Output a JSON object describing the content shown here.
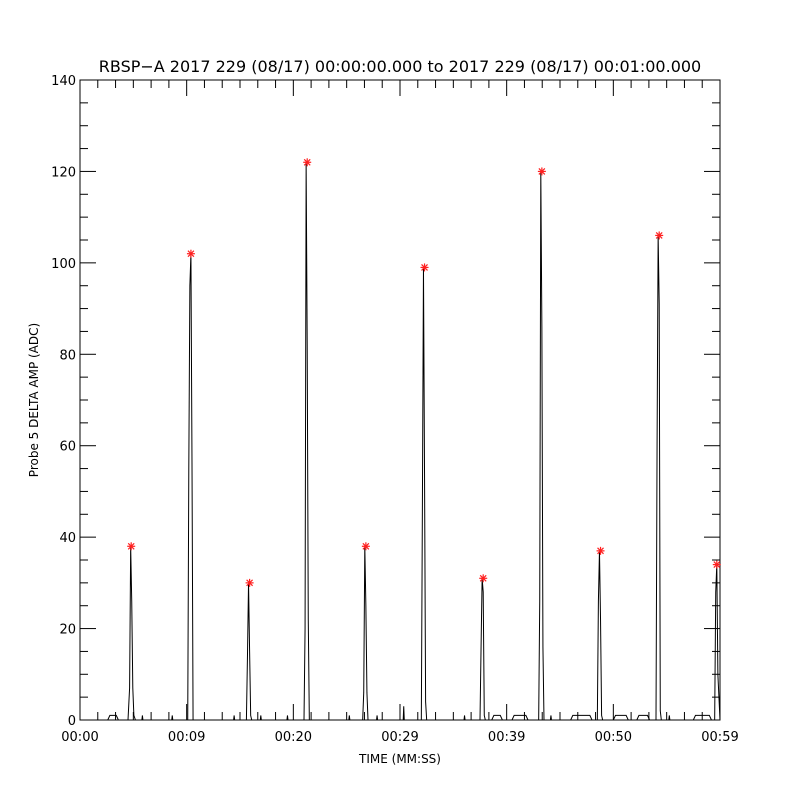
{
  "chart_data": {
    "type": "line",
    "title": "RBSP−A 2017 229 (08/17) 00:00:00.000 to 2017 229 (08/17) 00:01:00.000",
    "xlabel": "TIME (MM:SS)",
    "ylabel": "Probe 5 DELTA AMP (ADC)",
    "xlim": [
      0,
      60
    ],
    "ylim": [
      0,
      140
    ],
    "x_ticks": [
      {
        "value": 0,
        "label": "00:00"
      },
      {
        "value": 10,
        "label": "00:09"
      },
      {
        "value": 20,
        "label": "00:20"
      },
      {
        "value": 30,
        "label": "00:29"
      },
      {
        "value": 40,
        "label": "00:39"
      },
      {
        "value": 50,
        "label": "00:50"
      },
      {
        "value": 60,
        "label": "00:59"
      }
    ],
    "y_ticks": [
      0,
      20,
      40,
      60,
      80,
      100,
      120,
      140
    ],
    "series": [
      {
        "style": "black-line",
        "x": [
          0,
          2.6,
          2.8,
          3.4,
          3.6,
          4.5,
          4.65,
          4.75,
          4.85,
          4.95,
          5.05,
          5.2,
          5.8,
          5.85,
          5.9,
          8.6,
          8.65,
          8.7,
          10.1,
          10.2,
          10.3,
          10.4,
          10.5,
          10.6,
          14.4,
          14.45,
          14.5,
          15.6,
          15.7,
          15.8,
          15.9,
          16.0,
          16.1,
          16.9,
          16.95,
          17.0,
          19.4,
          19.45,
          19.5,
          21.0,
          21.1,
          21.2,
          21.3,
          21.4,
          21.5,
          25.2,
          25.25,
          25.3,
          26.5,
          26.6,
          26.7,
          26.8,
          26.9,
          27.0,
          27.8,
          27.85,
          27.9,
          30.3,
          30.35,
          30.4,
          32.0,
          32.1,
          32.2,
          32.3,
          32.4,
          32.5,
          36.0,
          36.05,
          36.1,
          37.5,
          37.6,
          37.7,
          37.8,
          37.9,
          38.0,
          38.6,
          38.8,
          39.4,
          39.6,
          40.5,
          40.7,
          41.8,
          42.0,
          43.0,
          43.1,
          43.2,
          43.3,
          43.4,
          43.5,
          44.1,
          44.15,
          44.2,
          46.0,
          46.2,
          47.8,
          48.0,
          48.5,
          48.6,
          48.7,
          48.8,
          48.9,
          49.0,
          50.0,
          50.2,
          51.2,
          51.4,
          52.2,
          52.4,
          53.2,
          53.4,
          54.0,
          54.1,
          54.2,
          54.3,
          54.4,
          54.5,
          55.2,
          55.25,
          55.3,
          57.5,
          57.7,
          59.0,
          59.2,
          59.5,
          59.6,
          59.7,
          59.8,
          60.0
        ],
        "y": [
          0,
          0,
          1,
          1,
          0,
          0,
          7,
          38,
          26,
          7,
          1,
          0,
          0,
          1,
          0,
          0,
          1,
          0,
          0,
          55,
          95,
          102,
          56,
          0,
          0,
          1,
          0,
          0,
          14,
          30,
          15,
          1,
          0,
          0,
          1,
          0,
          0,
          1,
          0,
          0,
          20,
          122,
          82,
          22,
          0,
          0,
          1,
          0,
          0,
          6,
          38,
          25,
          6,
          0,
          0,
          1,
          0,
          0,
          3,
          0,
          0,
          47,
          99,
          54,
          4,
          0,
          0,
          1,
          0,
          0,
          16,
          31,
          28,
          1,
          0,
          0,
          1,
          1,
          0,
          0,
          1,
          1,
          0,
          0,
          26,
          120,
          86,
          16,
          0,
          0,
          1,
          0,
          0,
          1,
          1,
          0,
          0,
          26,
          37,
          22,
          1,
          0,
          0,
          1,
          1,
          0,
          0,
          1,
          1,
          0,
          0,
          60,
          106,
          91,
          2,
          0,
          0,
          1,
          0,
          0,
          1,
          1,
          0,
          0,
          28,
          34,
          10,
          0
        ]
      },
      {
        "style": "red-star-peaks",
        "x": [
          4.8,
          10.4,
          15.9,
          21.3,
          26.8,
          32.3,
          37.8,
          43.3,
          48.8,
          54.3,
          59.7
        ],
        "y": [
          38,
          102,
          30,
          122,
          38,
          99,
          31,
          120,
          37,
          106,
          34
        ]
      }
    ],
    "colors": {
      "line": "#000000",
      "markers": "#ff2020"
    }
  }
}
